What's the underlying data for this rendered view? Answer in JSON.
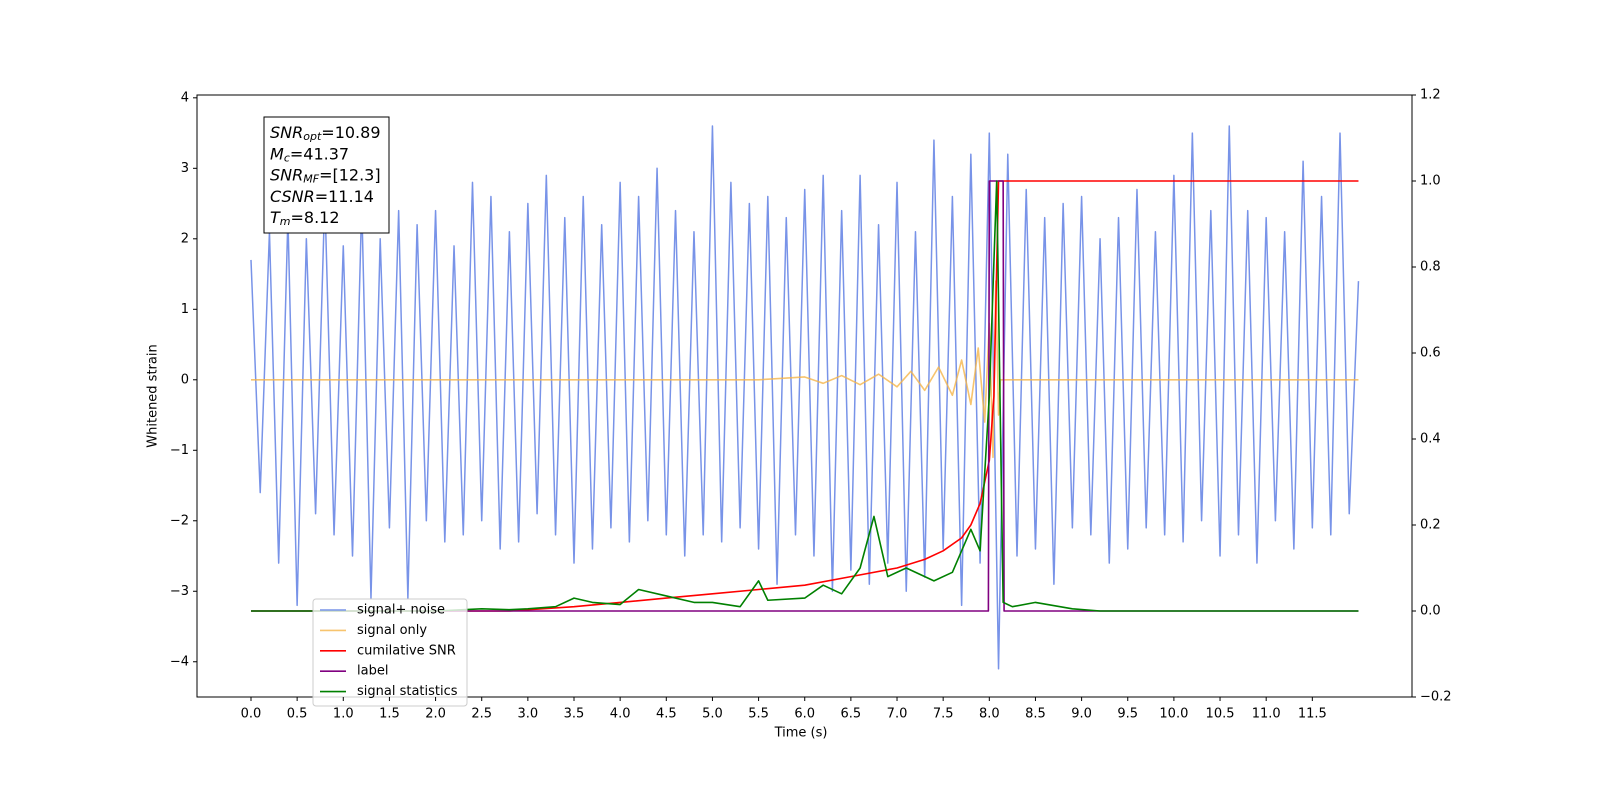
{
  "chart_data": {
    "type": "line",
    "xlabel": "Time (s)",
    "ylabel": "Whitened strain",
    "xlim": [
      -0.585,
      12.58
    ],
    "ylim": [
      -4.5,
      4.04
    ],
    "y2lim": [
      -0.2,
      1.2
    ],
    "xticks": [
      {
        "value": 0,
        "label": "0.0"
      },
      {
        "value": 0.5,
        "label": "0.5"
      },
      {
        "value": 1,
        "label": "1.0"
      },
      {
        "value": 1.5,
        "label": "1.5"
      },
      {
        "value": 2,
        "label": "2.0"
      },
      {
        "value": 2.5,
        "label": "2.5"
      },
      {
        "value": 3,
        "label": "3.0"
      },
      {
        "value": 3.5,
        "label": "3.5"
      },
      {
        "value": 4,
        "label": "4.0"
      },
      {
        "value": 4.5,
        "label": "4.5"
      },
      {
        "value": 5,
        "label": "5.0"
      },
      {
        "value": 5.5,
        "label": "5.5"
      },
      {
        "value": 6,
        "label": "6.0"
      },
      {
        "value": 6.5,
        "label": "6.5"
      },
      {
        "value": 7,
        "label": "7.0"
      },
      {
        "value": 7.5,
        "label": "7.5"
      },
      {
        "value": 8,
        "label": "8.0"
      },
      {
        "value": 8.5,
        "label": "8.5"
      },
      {
        "value": 9,
        "label": "9.0"
      },
      {
        "value": 9.5,
        "label": "9.5"
      },
      {
        "value": 10,
        "label": "10.0"
      },
      {
        "value": 10.5,
        "label": "10.5"
      },
      {
        "value": 11,
        "label": "11.0"
      },
      {
        "value": 11.5,
        "label": "11.5"
      }
    ],
    "yticks": [
      {
        "value": -4,
        "label": "−4"
      },
      {
        "value": -3,
        "label": "−3"
      },
      {
        "value": -2,
        "label": "−2"
      },
      {
        "value": -1,
        "label": "−1"
      },
      0,
      1,
      2,
      3,
      4
    ],
    "y2ticks": [
      {
        "value": -0.2,
        "label": "−0.2"
      },
      {
        "value": 0,
        "label": "0.0"
      },
      {
        "value": 0.2,
        "label": "0.2"
      },
      {
        "value": 0.4,
        "label": "0.4"
      },
      {
        "value": 0.6,
        "label": "0.6"
      },
      {
        "value": 0.8,
        "label": "0.8"
      },
      {
        "value": 1,
        "label": "1.0"
      },
      {
        "value": 1.2,
        "label": "1.2"
      }
    ],
    "annotations": [
      {
        "text": "SNR",
        "sub": "opt",
        "value": "=10.89"
      },
      {
        "text": "M",
        "sub": "c",
        "value": "=41.37"
      },
      {
        "text": "SNR",
        "sub": "MF",
        "value": "=[12.3]"
      },
      {
        "text": "CSNR",
        "sub": "",
        "value": "=11.14"
      },
      {
        "text": "T",
        "sub": "m",
        "value": "=8.12"
      }
    ],
    "series": [
      {
        "name": "signal+ noise",
        "color": "#7893e8",
        "x": [
          0,
          0.1,
          0.2,
          0.3,
          0.4,
          0.5,
          0.6,
          0.7,
          0.8,
          0.9,
          1,
          1.1,
          1.2,
          1.3,
          1.4,
          1.5,
          1.6,
          1.7,
          1.8,
          1.9,
          2,
          2.1,
          2.2,
          2.3,
          2.4,
          2.5,
          2.6,
          2.7,
          2.8,
          2.9,
          3,
          3.1,
          3.2,
          3.3,
          3.4,
          3.5,
          3.6,
          3.7,
          3.8,
          3.9,
          4,
          4.1,
          4.2,
          4.3,
          4.4,
          4.5,
          4.6,
          4.7,
          4.8,
          4.9,
          5,
          5.1,
          5.2,
          5.3,
          5.4,
          5.5,
          5.6,
          5.7,
          5.8,
          5.9,
          6,
          6.1,
          6.2,
          6.3,
          6.4,
          6.5,
          6.6,
          6.7,
          6.8,
          6.9,
          7,
          7.1,
          7.2,
          7.3,
          7.4,
          7.5,
          7.6,
          7.7,
          7.8,
          7.9,
          8,
          8.1,
          8.2,
          8.3,
          8.4,
          8.5,
          8.6,
          8.7,
          8.8,
          8.9,
          9,
          9.1,
          9.2,
          9.3,
          9.4,
          9.5,
          9.6,
          9.7,
          9.8,
          9.9,
          10,
          10.1,
          10.2,
          10.3,
          10.4,
          10.5,
          10.6,
          10.7,
          10.8,
          10.9,
          11,
          11.1,
          11.2,
          11.3,
          11.4,
          11.5,
          11.6,
          11.7,
          11.8,
          11.9,
          12
        ],
        "values": [
          1.7,
          -1.6,
          2.1,
          -2.6,
          2.3,
          -3.2,
          2.0,
          -1.9,
          2.6,
          -2.2,
          1.9,
          -2.5,
          2.5,
          -3.1,
          2.0,
          -2.1,
          2.4,
          -3.1,
          2.2,
          -2.0,
          2.4,
          -2.3,
          1.9,
          -2.2,
          2.8,
          -2.0,
          2.6,
          -2.4,
          2.1,
          -2.3,
          2.5,
          -1.9,
          2.9,
          -2.2,
          2.3,
          -2.6,
          2.6,
          -2.4,
          2.2,
          -2.1,
          2.8,
          -2.3,
          2.6,
          -2.0,
          3.0,
          -2.2,
          2.4,
          -2.5,
          2.1,
          -2.2,
          3.6,
          -2.3,
          2.8,
          -2.1,
          2.5,
          -2.4,
          2.6,
          -2.9,
          2.3,
          -2.2,
          2.7,
          -2.5,
          2.9,
          -3.0,
          2.4,
          -2.7,
          2.9,
          -2.9,
          2.2,
          -2.6,
          2.8,
          -3.0,
          2.1,
          -2.8,
          3.4,
          -2.4,
          2.6,
          -3.2,
          3.2,
          -2.6,
          3.5,
          -4.1,
          3.2,
          -2.5,
          2.7,
          -2.4,
          2.3,
          -2.9,
          2.5,
          -2.1,
          2.6,
          -2.2,
          2.0,
          -2.6,
          2.3,
          -2.4,
          2.7,
          -2.1,
          2.1,
          -2.2,
          2.9,
          -2.3,
          3.5,
          -2.0,
          2.4,
          -2.5,
          3.6,
          -2.2,
          2.4,
          -2.6,
          2.3,
          -2.0,
          2.1,
          -2.4,
          3.1,
          -2.1,
          2.6,
          -2.2,
          3.5,
          -1.9,
          1.4
        ]
      },
      {
        "name": "signal only",
        "color": "#f5b54a",
        "x": [
          0,
          5.5,
          6,
          6.2,
          6.4,
          6.6,
          6.8,
          7,
          7.15,
          7.3,
          7.45,
          7.6,
          7.7,
          7.8,
          7.88,
          7.95,
          8,
          8.04,
          8.07,
          8.1,
          8.12,
          12
        ],
        "values": [
          0,
          0,
          0.04,
          -0.05,
          0.06,
          -0.07,
          0.08,
          -0.1,
          0.12,
          -0.15,
          0.18,
          -0.22,
          0.28,
          -0.35,
          0.45,
          -0.6,
          0.8,
          -1.1,
          1.4,
          -0.5,
          0,
          0
        ]
      },
      {
        "name": "cumilative SNR",
        "color": "#ff0000",
        "axis": "y2",
        "x": [
          0,
          2.8,
          3.5,
          4,
          4.5,
          5,
          5.5,
          6,
          6.5,
          7,
          7.3,
          7.5,
          7.7,
          7.8,
          7.9,
          8,
          8.05,
          8.1,
          12
        ],
        "values": [
          0,
          0,
          0.01,
          0.02,
          0.03,
          0.04,
          0.05,
          0.06,
          0.08,
          0.1,
          0.12,
          0.14,
          0.17,
          0.2,
          0.25,
          0.35,
          0.5,
          1,
          1
        ]
      },
      {
        "name": "label",
        "color": "#800080",
        "axis": "y2",
        "x": [
          0,
          7.99,
          8,
          8.15,
          8.16,
          12
        ],
        "values": [
          0,
          0,
          1,
          1,
          0,
          0
        ]
      },
      {
        "name": "signal statistics",
        "color": "#008000",
        "axis": "y2",
        "x": [
          0,
          2,
          2.5,
          2.8,
          3,
          3.3,
          3.5,
          3.7,
          4,
          4.2,
          4.5,
          4.8,
          5,
          5.3,
          5.5,
          5.6,
          6,
          6.2,
          6.4,
          6.6,
          6.75,
          6.9,
          7.1,
          7.4,
          7.6,
          7.8,
          7.9,
          8,
          8.08,
          8.15,
          8.25,
          8.5,
          8.9,
          9.2,
          12
        ],
        "values": [
          0,
          0,
          0.005,
          0.003,
          0.005,
          0.01,
          0.03,
          0.02,
          0.015,
          0.05,
          0.035,
          0.02,
          0.02,
          0.01,
          0.07,
          0.025,
          0.03,
          0.06,
          0.04,
          0.1,
          0.22,
          0.08,
          0.1,
          0.07,
          0.09,
          0.19,
          0.14,
          0.5,
          1,
          0.02,
          0.01,
          0.02,
          0.005,
          0,
          0
        ]
      }
    ]
  }
}
